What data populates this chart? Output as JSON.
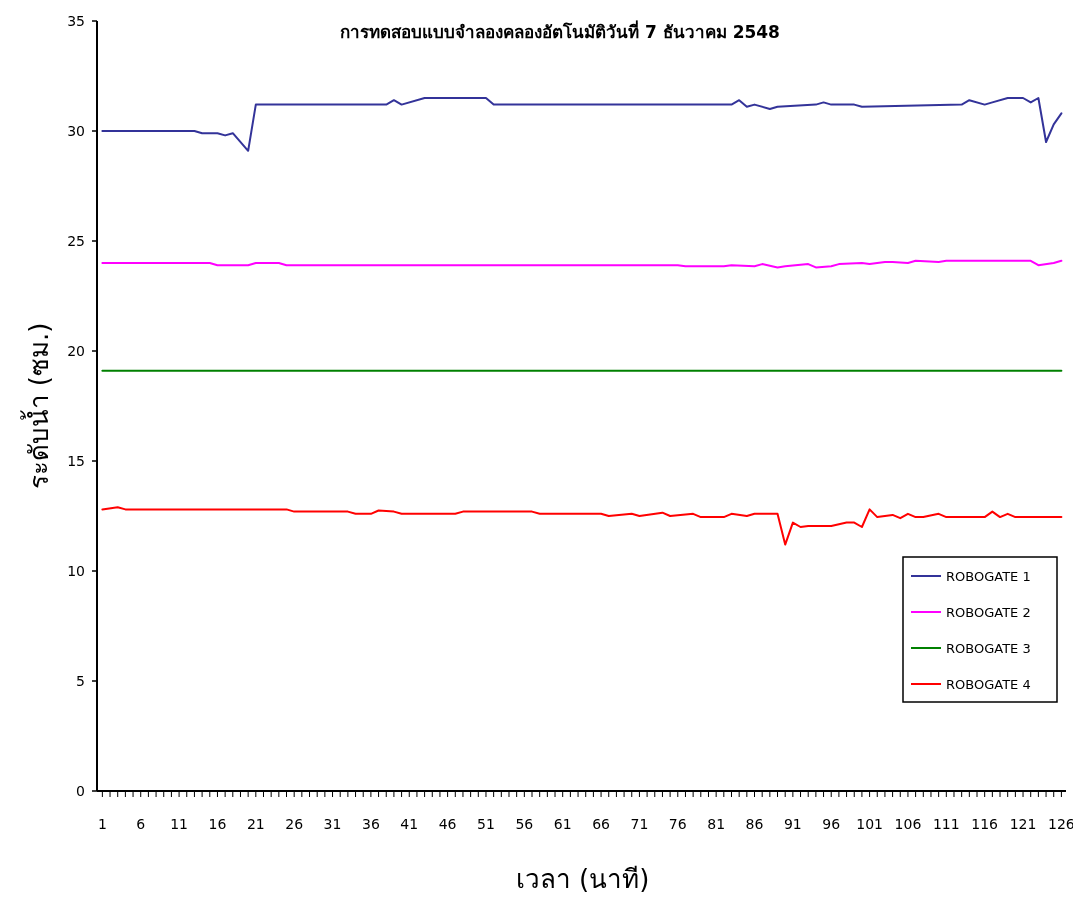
{
  "chart_data": {
    "type": "line",
    "title": "การทดสอบแบบจำลองคลองอัตโนมัติวันที่ 7 ธันวาคม 2548",
    "xlabel": "เวลา (นาที)",
    "ylabel": "ระดับน้ำ (ซม.)",
    "xlim": [
      0.3,
      126.6
    ],
    "ylim": [
      0,
      35
    ],
    "yticks": [
      0,
      5,
      10,
      15,
      20,
      25,
      30,
      35
    ],
    "xticks": [
      1,
      {
        "value": 2,
        "label": null
      },
      {
        "value": 3,
        "label": null
      },
      {
        "value": 4,
        "label": null
      },
      {
        "value": 5,
        "label": null
      },
      6,
      {
        "value": 7,
        "label": null
      },
      {
        "value": 8,
        "label": null
      },
      {
        "value": 9,
        "label": null
      },
      {
        "value": 10,
        "label": null
      },
      11,
      {
        "value": 12,
        "label": null
      },
      {
        "value": 13,
        "label": null
      },
      {
        "value": 14,
        "label": null
      },
      {
        "value": 15,
        "label": null
      },
      16,
      {
        "value": 17,
        "label": null
      },
      {
        "value": 18,
        "label": null
      },
      {
        "value": 19,
        "label": null
      },
      {
        "value": 20,
        "label": null
      },
      21,
      {
        "value": 22,
        "label": null
      },
      {
        "value": 23,
        "label": null
      },
      {
        "value": 24,
        "label": null
      },
      {
        "value": 25,
        "label": null
      },
      26,
      {
        "value": 27,
        "label": null
      },
      {
        "value": 28,
        "label": null
      },
      {
        "value": 29,
        "label": null
      },
      {
        "value": 30,
        "label": null
      },
      31,
      {
        "value": 32,
        "label": null
      },
      {
        "value": 33,
        "label": null
      },
      {
        "value": 34,
        "label": null
      },
      {
        "value": 35,
        "label": null
      },
      36,
      {
        "value": 37,
        "label": null
      },
      {
        "value": 38,
        "label": null
      },
      {
        "value": 39,
        "label": null
      },
      {
        "value": 40,
        "label": null
      },
      41,
      {
        "value": 42,
        "label": null
      },
      {
        "value": 43,
        "label": null
      },
      {
        "value": 44,
        "label": null
      },
      {
        "value": 45,
        "label": null
      },
      46,
      {
        "value": 47,
        "label": null
      },
      {
        "value": 48,
        "label": null
      },
      {
        "value": 49,
        "label": null
      },
      {
        "value": 50,
        "label": null
      },
      51,
      {
        "value": 52,
        "label": null
      },
      {
        "value": 53,
        "label": null
      },
      {
        "value": 54,
        "label": null
      },
      {
        "value": 55,
        "label": null
      },
      56,
      {
        "value": 57,
        "label": null
      },
      {
        "value": 58,
        "label": null
      },
      {
        "value": 59,
        "label": null
      },
      {
        "value": 60,
        "label": null
      },
      61,
      {
        "value": 62,
        "label": null
      },
      {
        "value": 63,
        "label": null
      },
      {
        "value": 64,
        "label": null
      },
      {
        "value": 65,
        "label": null
      },
      66,
      {
        "value": 67,
        "label": null
      },
      {
        "value": 68,
        "label": null
      },
      {
        "value": 69,
        "label": null
      },
      {
        "value": 70,
        "label": null
      },
      71,
      {
        "value": 72,
        "label": null
      },
      {
        "value": 73,
        "label": null
      },
      {
        "value": 74,
        "label": null
      },
      {
        "value": 75,
        "label": null
      },
      76,
      {
        "value": 77,
        "label": null
      },
      {
        "value": 78,
        "label": null
      },
      {
        "value": 79,
        "label": null
      },
      {
        "value": 80,
        "label": null
      },
      81,
      {
        "value": 82,
        "label": null
      },
      {
        "value": 83,
        "label": null
      },
      {
        "value": 84,
        "label": null
      },
      {
        "value": 85,
        "label": null
      },
      86,
      {
        "value": 87,
        "label": null
      },
      {
        "value": 88,
        "label": null
      },
      {
        "value": 89,
        "label": null
      },
      {
        "value": 90,
        "label": null
      },
      91,
      {
        "value": 92,
        "label": null
      },
      {
        "value": 93,
        "label": null
      },
      {
        "value": 94,
        "label": null
      },
      {
        "value": 95,
        "label": null
      },
      96,
      {
        "value": 97,
        "label": null
      },
      {
        "value": 98,
        "label": null
      },
      {
        "value": 99,
        "label": null
      },
      {
        "value": 100,
        "label": null
      },
      101,
      {
        "value": 102,
        "label": null
      },
      {
        "value": 103,
        "label": null
      },
      {
        "value": 104,
        "label": null
      },
      {
        "value": 105,
        "label": null
      },
      106,
      {
        "value": 107,
        "label": null
      },
      {
        "value": 108,
        "label": null
      },
      {
        "value": 109,
        "label": null
      },
      {
        "value": 110,
        "label": null
      },
      111,
      {
        "value": 112,
        "label": null
      },
      {
        "value": 113,
        "label": null
      },
      {
        "value": 114,
        "label": null
      },
      {
        "value": 115,
        "label": null
      },
      116,
      {
        "value": 117,
        "label": null
      },
      {
        "value": 118,
        "label": null
      },
      {
        "value": 119,
        "label": null
      },
      {
        "value": 120,
        "label": null
      },
      121,
      {
        "value": 122,
        "label": null
      },
      {
        "value": 123,
        "label": null
      },
      {
        "value": 124,
        "label": null
      },
      {
        "value": 125,
        "label": null
      },
      126
    ],
    "grid": false,
    "legend": "bottom right",
    "marker": "none",
    "line_style": "solid",
    "series": [
      {
        "name": "ROBOGATE 1",
        "color": "#333399",
        "x": [
          1,
          13,
          14,
          16,
          17,
          18,
          20,
          21,
          38,
          39,
          40,
          43,
          51,
          52,
          83,
          84,
          85,
          86,
          88,
          89,
          94,
          95,
          96,
          99,
          100,
          113,
          114,
          116,
          117,
          119,
          121,
          122,
          123,
          124,
          125,
          126
        ],
        "values": [
          30.0,
          30.0,
          29.9,
          29.9,
          29.8,
          29.9,
          29.1,
          31.2,
          31.2,
          31.4,
          31.2,
          31.5,
          31.5,
          31.2,
          31.2,
          31.4,
          31.1,
          31.2,
          31.0,
          31.1,
          31.2,
          31.3,
          31.2,
          31.2,
          31.1,
          31.2,
          31.4,
          31.2,
          31.3,
          31.5,
          31.5,
          31.3,
          31.5,
          29.5,
          30.3,
          30.8
        ]
      },
      {
        "name": "ROBOGATE 2",
        "color": "#ff00ff",
        "x": [
          1,
          15,
          16,
          20,
          21,
          24,
          25,
          76,
          77,
          82,
          83,
          86,
          87,
          89,
          90,
          93,
          94,
          96,
          97,
          100,
          101,
          103,
          104,
          106,
          107,
          110,
          111,
          122,
          123,
          125,
          126
        ],
        "values": [
          24.0,
          24.0,
          23.9,
          23.9,
          24.0,
          24.0,
          23.9,
          23.9,
          23.85,
          23.85,
          23.9,
          23.85,
          23.95,
          23.8,
          23.85,
          23.95,
          23.8,
          23.85,
          23.95,
          24.0,
          23.95,
          24.05,
          24.05,
          24.0,
          24.1,
          24.05,
          24.1,
          24.1,
          23.9,
          24.0,
          24.1
        ]
      },
      {
        "name": "ROBOGATE 3",
        "color": "#008000",
        "x": [
          1,
          126
        ],
        "values": [
          19.1,
          19.1
        ]
      },
      {
        "name": "ROBOGATE 4",
        "color": "#ff0000",
        "x": [
          1,
          3,
          4,
          25,
          26,
          33,
          34,
          36,
          37,
          39,
          40,
          47,
          48,
          57,
          58,
          66,
          67,
          70,
          71,
          74,
          75,
          78,
          79,
          82,
          83,
          85,
          86,
          89,
          90,
          91,
          92,
          93,
          96,
          98,
          99,
          100,
          101,
          102,
          104,
          105,
          106,
          107,
          108,
          110,
          111,
          116,
          117,
          118,
          119,
          120,
          126
        ],
        "values": [
          12.8,
          12.9,
          12.8,
          12.8,
          12.7,
          12.7,
          12.6,
          12.6,
          12.75,
          12.7,
          12.6,
          12.6,
          12.7,
          12.7,
          12.6,
          12.6,
          12.5,
          12.6,
          12.5,
          12.65,
          12.5,
          12.6,
          12.45,
          12.45,
          12.6,
          12.5,
          12.6,
          12.6,
          11.2,
          12.2,
          12.0,
          12.05,
          12.05,
          12.2,
          12.2,
          12.0,
          12.8,
          12.45,
          12.55,
          12.4,
          12.6,
          12.45,
          12.45,
          12.6,
          12.45,
          12.45,
          12.7,
          12.45,
          12.6,
          12.45,
          12.45
        ]
      }
    ]
  }
}
